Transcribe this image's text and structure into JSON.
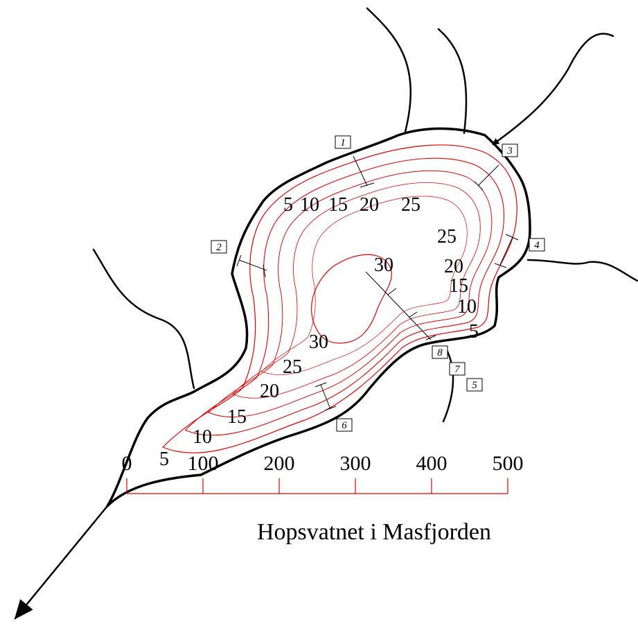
{
  "title": "Hopsvatnet i Masfjorden",
  "stations": [
    "1",
    "2",
    "3",
    "4",
    "5",
    "6",
    "7",
    "8"
  ],
  "depth_labels": [
    5,
    10,
    15,
    20,
    25,
    25,
    20,
    15,
    10,
    5,
    30,
    30,
    25,
    20,
    15,
    10,
    5
  ],
  "scale_bar": {
    "ticks": [
      0,
      100,
      200,
      300,
      400,
      500
    ]
  }
}
